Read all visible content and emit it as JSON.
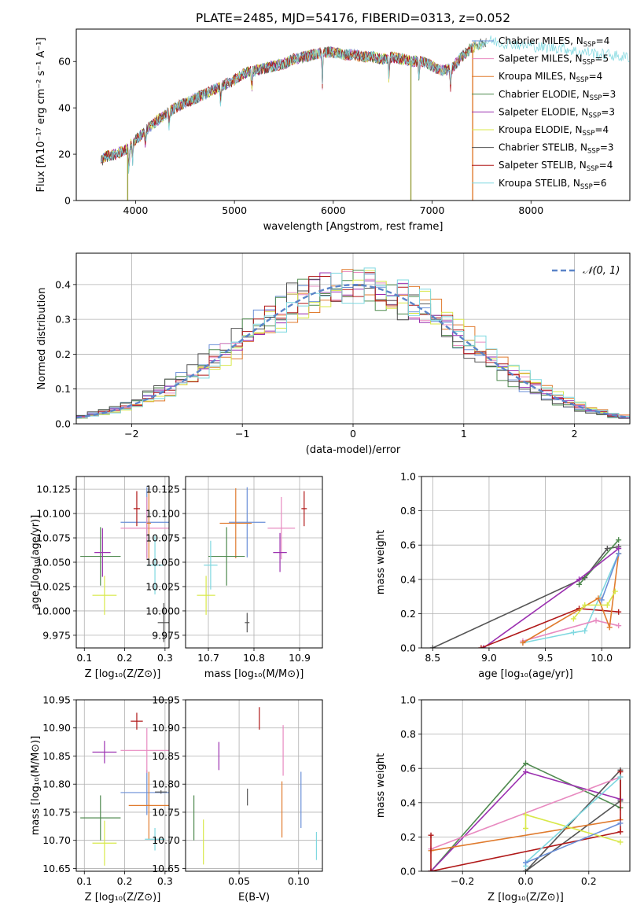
{
  "figure": {
    "title": "PLATE=2485, MJD=54176, FIBERID=0313, z=0.052"
  },
  "legend_entries": [
    {
      "label": "Chabrier MILES, N",
      "sub": "SSP",
      "suffix": "=4",
      "color": "#6a8fd8"
    },
    {
      "label": "Salpeter MILES, N",
      "sub": "SSP",
      "suffix": "=5",
      "color": "#e88ac0"
    },
    {
      "label": "Kroupa MILES, N",
      "sub": "SSP",
      "suffix": "=4",
      "color": "#e07b2e"
    },
    {
      "label": "Chabrier ELODIE, N",
      "sub": "SSP",
      "suffix": "=3",
      "color": "#4f8a4f"
    },
    {
      "label": "Salpeter ELODIE, N",
      "sub": "SSP",
      "suffix": "=3",
      "color": "#9b30b0"
    },
    {
      "label": "Kroupa ELODIE, N",
      "sub": "SSP",
      "suffix": "=4",
      "color": "#d8e84a"
    },
    {
      "label": "Chabrier STELIB, N",
      "sub": "SSP",
      "suffix": "=3",
      "color": "#555555"
    },
    {
      "label": "Salpeter STELIB, N",
      "sub": "SSP",
      "suffix": "=4",
      "color": "#b01818"
    },
    {
      "label": "Kroupa STELIB, N",
      "sub": "SSP",
      "suffix": "=6",
      "color": "#7fd8e0"
    }
  ],
  "chart_data": [
    {
      "id": "spectrum",
      "type": "line",
      "xlabel": "wavelength [Angstrom, rest frame]",
      "ylabel": "Flux [fλ10⁻¹⁷ erg cm⁻² s⁻¹ A⁻¹]",
      "xlim": [
        3400,
        9000
      ],
      "ylim": [
        0,
        74
      ],
      "xticks": [
        4000,
        5000,
        6000,
        7000,
        8000
      ],
      "yticks": [
        0,
        20,
        40,
        60
      ],
      "grid": false,
      "legend_position": "lower-right",
      "continuum": {
        "x": [
          3650,
          3700,
          3800,
          3900,
          4000,
          4100,
          4200,
          4300,
          4400,
          4500,
          4600,
          4700,
          4800,
          4900,
          5000,
          5100,
          5200,
          5300,
          5400,
          5500,
          5600,
          5700,
          5800,
          5900,
          6000,
          6100,
          6200,
          6300,
          6400,
          6500,
          6600,
          6700,
          6800,
          6900,
          7000,
          7100,
          7200,
          7300,
          7400,
          7500,
          7600,
          7700,
          7800,
          7900,
          8000,
          8100,
          8200,
          8300,
          8400,
          8500,
          8600,
          8700,
          8800,
          8900
        ],
        "y": [
          17,
          19,
          20,
          22,
          26,
          30,
          34,
          37,
          40,
          42,
          44,
          46,
          48,
          50,
          52,
          55,
          56,
          57,
          58,
          59,
          61,
          62,
          63,
          64,
          64,
          63,
          63,
          62,
          62,
          61,
          62,
          61,
          60,
          60,
          58,
          56,
          57,
          62,
          66,
          68,
          69,
          68,
          68,
          67,
          67,
          66,
          66,
          66,
          65,
          64,
          64,
          63,
          63,
          62
        ]
      },
      "model_end_x": [
        7400,
        7300,
        7450,
        7550,
        7350,
        7500,
        7550,
        7420,
        9000
      ]
    },
    {
      "id": "residual-histogram",
      "type": "bar",
      "xlabel": "(data-model)/error",
      "ylabel": "Normed distribution",
      "xlim": [
        -2.5,
        2.5
      ],
      "ylim": [
        0,
        0.49
      ],
      "xticks": [
        -2,
        -1,
        0,
        1,
        2
      ],
      "yticks": [
        0.0,
        0.1,
        0.2,
        0.3,
        0.4
      ],
      "grid": true,
      "legend": [
        {
          "label": "𝒩(0, 1)",
          "style": "dashed",
          "color": "#5b84c8"
        }
      ],
      "legend_position": "top-right",
      "bin_width": 0.1,
      "reference_curve": "normal(0,1)"
    },
    {
      "id": "age-vs-Z",
      "type": "scatter",
      "xlabel": "Z [log₁₀(Z/Z⊙)]",
      "ylabel": "age  [log₁₀(age/yr)]",
      "xlim": [
        0.08,
        0.31
      ],
      "ylim": [
        9.962,
        10.138
      ],
      "xticks": [
        0.1,
        0.2,
        0.3
      ],
      "yticks": [
        9.975,
        10.0,
        10.025,
        10.05,
        10.075,
        10.1,
        10.125
      ],
      "grid": true,
      "points": [
        {
          "x": 0.255,
          "y": 10.091,
          "xerr": 0.065,
          "yerr": 0.036,
          "color": "#6a8fd8"
        },
        {
          "x": 0.255,
          "y": 10.085,
          "xerr": 0.065,
          "yerr": 0.032,
          "color": "#e88ac0"
        },
        {
          "x": 0.26,
          "y": 10.09,
          "xerr": 0.005,
          "yerr": 0.036,
          "color": "#e07b2e"
        },
        {
          "x": 0.14,
          "y": 10.056,
          "xerr": 0.05,
          "yerr": 0.03,
          "color": "#4f8a4f"
        },
        {
          "x": 0.145,
          "y": 10.06,
          "xerr": 0.02,
          "yerr": 0.025,
          "color": "#9b30b0"
        },
        {
          "x": 0.15,
          "y": 10.016,
          "xerr": 0.03,
          "yerr": 0.02,
          "color": "#d8e84a"
        },
        {
          "x": 0.297,
          "y": 9.988,
          "xerr": 0.015,
          "yerr": 0.02,
          "color": "#555555"
        },
        {
          "x": 0.23,
          "y": 10.105,
          "xerr": 0.008,
          "yerr": 0.018,
          "color": "#b01818"
        },
        {
          "x": 0.275,
          "y": 10.047,
          "xerr": 0.02,
          "yerr": 0.03,
          "color": "#7fd8e0"
        }
      ]
    },
    {
      "id": "age-vs-mass",
      "type": "scatter",
      "xlabel": "mass [log₁₀(M/M⊙)]",
      "ylabel": "",
      "xlim": [
        10.65,
        10.95
      ],
      "ylim": [
        9.962,
        10.138
      ],
      "xticks": [
        10.7,
        10.8,
        10.9
      ],
      "yticks": [
        9.975,
        10.0,
        10.025,
        10.05,
        10.075,
        10.1,
        10.125
      ],
      "grid": true,
      "points": [
        {
          "x": 10.785,
          "y": 10.091,
          "xerr": 0.04,
          "yerr": 0.036,
          "color": "#6a8fd8"
        },
        {
          "x": 10.86,
          "y": 10.085,
          "xerr": 0.03,
          "yerr": 0.032,
          "color": "#e88ac0"
        },
        {
          "x": 10.76,
          "y": 10.09,
          "xerr": 0.035,
          "yerr": 0.036,
          "color": "#e07b2e"
        },
        {
          "x": 10.74,
          "y": 10.056,
          "xerr": 0.04,
          "yerr": 0.03,
          "color": "#4f8a4f"
        },
        {
          "x": 10.857,
          "y": 10.06,
          "xerr": 0.015,
          "yerr": 0.02,
          "color": "#9b30b0"
        },
        {
          "x": 10.695,
          "y": 10.016,
          "xerr": 0.02,
          "yerr": 0.02,
          "color": "#d8e84a"
        },
        {
          "x": 10.785,
          "y": 9.988,
          "xerr": 0.005,
          "yerr": 0.01,
          "color": "#555555"
        },
        {
          "x": 10.91,
          "y": 10.105,
          "xerr": 0.006,
          "yerr": 0.018,
          "color": "#b01818"
        },
        {
          "x": 10.705,
          "y": 10.047,
          "xerr": 0.015,
          "yerr": 0.025,
          "color": "#7fd8e0"
        }
      ]
    },
    {
      "id": "massweight-vs-age",
      "type": "line",
      "xlabel": "age  [log₁₀(age/yr)]",
      "ylabel": "mass weight",
      "xlim": [
        8.4,
        10.25
      ],
      "ylim": [
        0,
        1
      ],
      "xticks": [
        8.5,
        9.0,
        9.5,
        10.0
      ],
      "yticks": [
        0.0,
        0.2,
        0.4,
        0.6,
        0.8,
        1.0
      ],
      "grid": true,
      "series": [
        {
          "color": "#555555",
          "x": [
            8.5,
            9.85,
            10.05,
            10.15
          ],
          "y": [
            0.0,
            0.41,
            0.58,
            0.59
          ]
        },
        {
          "color": "#4f8a4f",
          "x": [
            9.8,
            10.15
          ],
          "y": [
            0.37,
            0.63
          ]
        },
        {
          "color": "#9b30b0",
          "x": [
            8.95,
            9.8,
            10.15
          ],
          "y": [
            0.0,
            0.4,
            0.58
          ]
        },
        {
          "color": "#b01818",
          "x": [
            8.93,
            9.8,
            10.15
          ],
          "y": [
            0.0,
            0.23,
            0.21
          ]
        },
        {
          "color": "#7fd8e0",
          "x": [
            9.3,
            9.75,
            9.85,
            10.15
          ],
          "y": [
            0.03,
            0.09,
            0.1,
            0.55
          ]
        },
        {
          "color": "#e88ac0",
          "x": [
            9.3,
            9.95,
            10.15
          ],
          "y": [
            0.04,
            0.16,
            0.13
          ]
        },
        {
          "color": "#e07b2e",
          "x": [
            9.3,
            9.97,
            10.07,
            10.15
          ],
          "y": [
            0.03,
            0.29,
            0.12,
            0.55
          ]
        },
        {
          "color": "#d8e84a",
          "x": [
            9.75,
            9.85,
            10.05,
            10.12
          ],
          "y": [
            0.17,
            0.25,
            0.25,
            0.33
          ]
        },
        {
          "color": "#6a8fd8",
          "x": [
            10.0,
            10.15
          ],
          "y": [
            0.28,
            0.55
          ]
        }
      ]
    },
    {
      "id": "mass-vs-Z",
      "type": "scatter",
      "xlabel": "Z [log₁₀(Z/Z⊙)]",
      "ylabel": "mass [log₁₀(M/M⊙)]",
      "xlim": [
        0.08,
        0.31
      ],
      "ylim": [
        10.645,
        10.95
      ],
      "xticks": [
        0.1,
        0.2,
        0.3
      ],
      "yticks": [
        10.65,
        10.7,
        10.75,
        10.8,
        10.85,
        10.9,
        10.95
      ],
      "grid": true,
      "points": [
        {
          "x": 0.255,
          "y": 10.785,
          "xerr": 0.065,
          "yerr": 0.04,
          "color": "#6a8fd8"
        },
        {
          "x": 0.255,
          "y": 10.86,
          "xerr": 0.065,
          "yerr": 0.04,
          "color": "#e88ac0"
        },
        {
          "x": 0.26,
          "y": 10.762,
          "xerr": 0.05,
          "yerr": 0.06,
          "color": "#e07b2e"
        },
        {
          "x": 0.14,
          "y": 10.74,
          "xerr": 0.05,
          "yerr": 0.04,
          "color": "#4f8a4f"
        },
        {
          "x": 0.15,
          "y": 10.857,
          "xerr": 0.03,
          "yerr": 0.02,
          "color": "#9b30b0"
        },
        {
          "x": 0.15,
          "y": 10.695,
          "xerr": 0.03,
          "yerr": 0.04,
          "color": "#d8e84a"
        },
        {
          "x": 0.29,
          "y": 10.786,
          "xerr": 0.015,
          "yerr": 0.003,
          "color": "#555555"
        },
        {
          "x": 0.23,
          "y": 10.912,
          "xerr": 0.015,
          "yerr": 0.015,
          "color": "#b01818"
        },
        {
          "x": 0.275,
          "y": 10.702,
          "xerr": 0.025,
          "yerr": 0.02,
          "color": "#7fd8e0"
        }
      ]
    },
    {
      "id": "mass-vs-EBV",
      "type": "scatter",
      "xlabel": "E(B-V)",
      "ylabel": "",
      "xlim": [
        0.005,
        0.12
      ],
      "ylim": [
        10.645,
        10.95
      ],
      "xticks": [
        0.05,
        0.1
      ],
      "yticks": [
        10.65,
        10.7,
        10.75,
        10.8,
        10.85,
        10.9,
        10.95
      ],
      "grid": true,
      "points": [
        {
          "x": 0.102,
          "y": 10.772,
          "xerr": 0,
          "yerr": 0.05,
          "color": "#6a8fd8"
        },
        {
          "x": 0.087,
          "y": 10.86,
          "xerr": 0,
          "yerr": 0.045,
          "color": "#e88ac0"
        },
        {
          "x": 0.086,
          "y": 10.755,
          "xerr": 0,
          "yerr": 0.05,
          "color": "#e07b2e"
        },
        {
          "x": 0.012,
          "y": 10.74,
          "xerr": 0,
          "yerr": 0.04,
          "color": "#4f8a4f"
        },
        {
          "x": 0.033,
          "y": 10.85,
          "xerr": 0,
          "yerr": 0.025,
          "color": "#9b30b0"
        },
        {
          "x": 0.02,
          "y": 10.697,
          "xerr": 0,
          "yerr": 0.04,
          "color": "#d8e84a"
        },
        {
          "x": 0.057,
          "y": 10.777,
          "xerr": 0,
          "yerr": 0.015,
          "color": "#555555"
        },
        {
          "x": 0.067,
          "y": 10.917,
          "xerr": 0,
          "yerr": 0.02,
          "color": "#b01818"
        },
        {
          "x": 0.115,
          "y": 10.69,
          "xerr": 0,
          "yerr": 0.025,
          "color": "#7fd8e0"
        }
      ]
    },
    {
      "id": "massweight-vs-Z",
      "type": "line",
      "xlabel": "Z [log₁₀(Z/Z⊙)]",
      "ylabel": "mass weight",
      "xlim": [
        -0.33,
        0.33
      ],
      "ylim": [
        0,
        1
      ],
      "xticks": [
        -0.2,
        0.0,
        0.2
      ],
      "yticks": [
        0.0,
        0.2,
        0.4,
        0.6,
        0.8,
        1.0
      ],
      "grid": true,
      "series": [
        {
          "color": "#4f8a4f",
          "x": [
            -0.3,
            0.0,
            0.3
          ],
          "y": [
            0.0,
            0.63,
            0.37
          ]
        },
        {
          "color": "#9b30b0",
          "x": [
            -0.3,
            0.0,
            0.3
          ],
          "y": [
            0.0,
            0.58,
            0.42
          ]
        },
        {
          "color": "#555555",
          "x": [
            0.0,
            0.3,
            0.3,
            0.0
          ],
          "y": [
            0.0,
            0.41,
            0.59,
            0.0
          ]
        },
        {
          "color": "#e88ac0",
          "x": [
            -0.3,
            0.3
          ],
          "y": [
            0.13,
            0.55
          ]
        },
        {
          "color": "#e07b2e",
          "x": [
            -0.3,
            0.3
          ],
          "y": [
            0.12,
            0.3
          ]
        },
        {
          "color": "#b01818",
          "x": [
            -0.3,
            -0.3,
            0.3,
            0.3
          ],
          "y": [
            0.21,
            0.0,
            0.23,
            0.58
          ]
        },
        {
          "color": "#d8e84a",
          "x": [
            0.0,
            0.0,
            0.3
          ],
          "y": [
            0.25,
            0.33,
            0.17
          ]
        },
        {
          "color": "#7fd8e0",
          "x": [
            0.0,
            0.0,
            0.3
          ],
          "y": [
            0.03,
            0.05,
            0.55
          ]
        },
        {
          "color": "#6a8fd8",
          "x": [
            0.0,
            0.3
          ],
          "y": [
            0.05,
            0.28
          ]
        }
      ]
    }
  ]
}
